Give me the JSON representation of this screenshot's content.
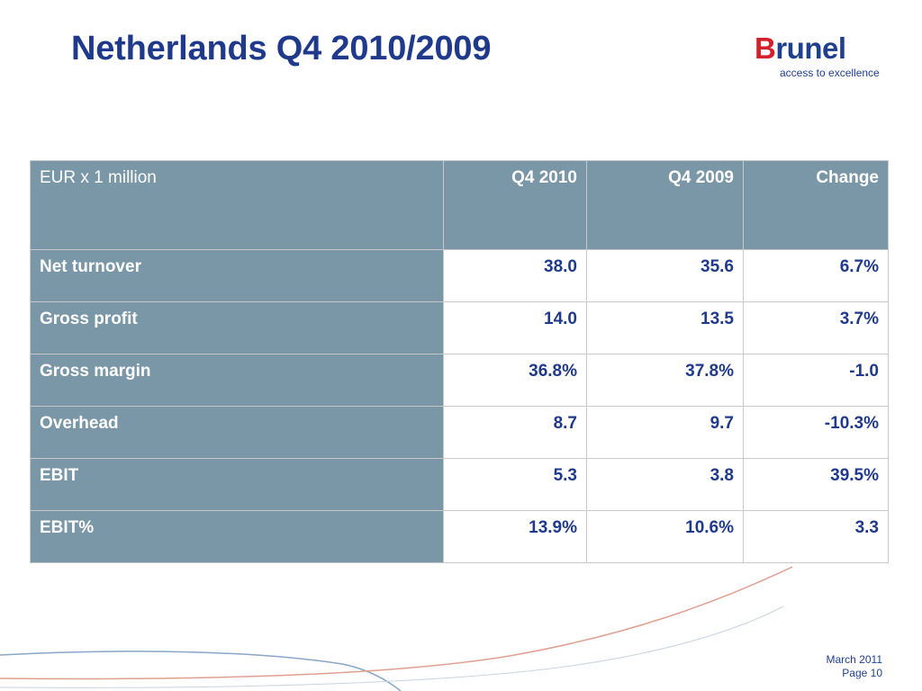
{
  "title": "Netherlands Q4 2010/2009",
  "logo": {
    "brand_first_letter": "B",
    "brand_rest": "runel",
    "tagline": "access to excellence"
  },
  "table": {
    "headers": [
      "EUR x 1 million",
      "Q4 2010",
      "Q4 2009",
      "Change"
    ],
    "rows": [
      {
        "label": "Net turnover",
        "q4_2010": "38.0",
        "q4_2009": "35.6",
        "change": "6.7%"
      },
      {
        "label": "Gross profit",
        "q4_2010": "14.0",
        "q4_2009": "13.5",
        "change": "3.7%"
      },
      {
        "label": "Gross margin",
        "q4_2010": "36.8%",
        "q4_2009": "37.8%",
        "change": "-1.0"
      },
      {
        "label": "Overhead",
        "q4_2010": "8.7",
        "q4_2009": "9.7",
        "change": "-10.3%"
      },
      {
        "label": "EBIT",
        "q4_2010": "5.3",
        "q4_2009": "3.8",
        "change": "39.5%"
      },
      {
        "label": "EBIT%",
        "q4_2010": "13.9%",
        "q4_2009": "10.6%",
        "change": "3.3"
      }
    ]
  },
  "footer": {
    "date": "March 2011",
    "page": "Page 10"
  },
  "colors": {
    "title": "#1f3a8a",
    "header_fill": "#7a97a8",
    "value_text": "#1f3a8a",
    "logo_accent": "#d3202a",
    "swoosh_blue": "#8aa6c8",
    "swoosh_red": "#e0a090"
  }
}
